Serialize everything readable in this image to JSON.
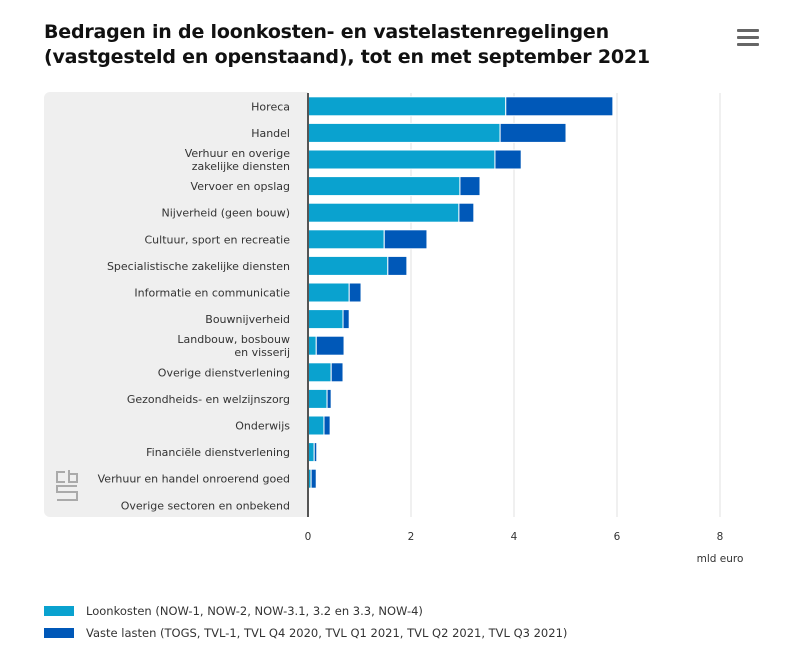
{
  "header": {
    "title_line1": "Bedragen in de loonkosten- en vastelastenregelingen",
    "title_line2": "(vastgesteld en openstaand), tot en met september 2021",
    "menu_icon": "hamburger-menu-icon"
  },
  "logo": {
    "name": "cbs-logo"
  },
  "chart_data": {
    "type": "bar",
    "orientation": "horizontal",
    "stacked": true,
    "title": "Bedragen in de loonkosten- en vastelastenregelingen (vastgesteld en openstaand), tot en met september 2021",
    "xlabel": "mld euro",
    "ylabel": "",
    "xlim": [
      0,
      8
    ],
    "xticks": [
      0,
      2,
      4,
      6,
      8
    ],
    "grid": true,
    "legend_position": "bottom-left",
    "categories": [
      [
        "Horeca"
      ],
      [
        "Handel"
      ],
      [
        "Verhuur en overige",
        "zakelijke diensten"
      ],
      [
        "Vervoer en opslag"
      ],
      [
        "Nijverheid (geen bouw)"
      ],
      [
        "Cultuur, sport en recreatie"
      ],
      [
        "Specialistische zakelijke diensten"
      ],
      [
        "Informatie en communicatie"
      ],
      [
        "Bouwnijverheid"
      ],
      [
        "Landbouw, bosbouw",
        "en visserij"
      ],
      [
        "Overige dienstverlening"
      ],
      [
        "Gezondheids- en welzijnszorg"
      ],
      [
        "Onderwijs"
      ],
      [
        "Financiële dienstverlening"
      ],
      [
        "Verhuur en handel onroerend goed"
      ],
      [
        "Overige sectoren en onbekend"
      ]
    ],
    "series": [
      {
        "name": "Loonkosten (NOW-1, NOW-2, NOW-3.1, 3.2 en 3.3, NOW-4)",
        "color": "#0aa2cf",
        "values": [
          3.84,
          3.73,
          3.63,
          2.95,
          2.93,
          1.48,
          1.55,
          0.8,
          0.68,
          0.16,
          0.45,
          0.37,
          0.31,
          0.12,
          0.06,
          0.01
        ]
      },
      {
        "name": "Vaste lasten (TOGS, TVL-1, TVL Q4 2020, TVL Q1 2021, TVL Q2 2021, TVL Q3 2021)",
        "color": "#0058b8",
        "values": [
          2.08,
          1.28,
          0.51,
          0.39,
          0.29,
          0.83,
          0.37,
          0.23,
          0.12,
          0.54,
          0.23,
          0.08,
          0.12,
          0.05,
          0.1,
          0.0
        ]
      }
    ]
  }
}
